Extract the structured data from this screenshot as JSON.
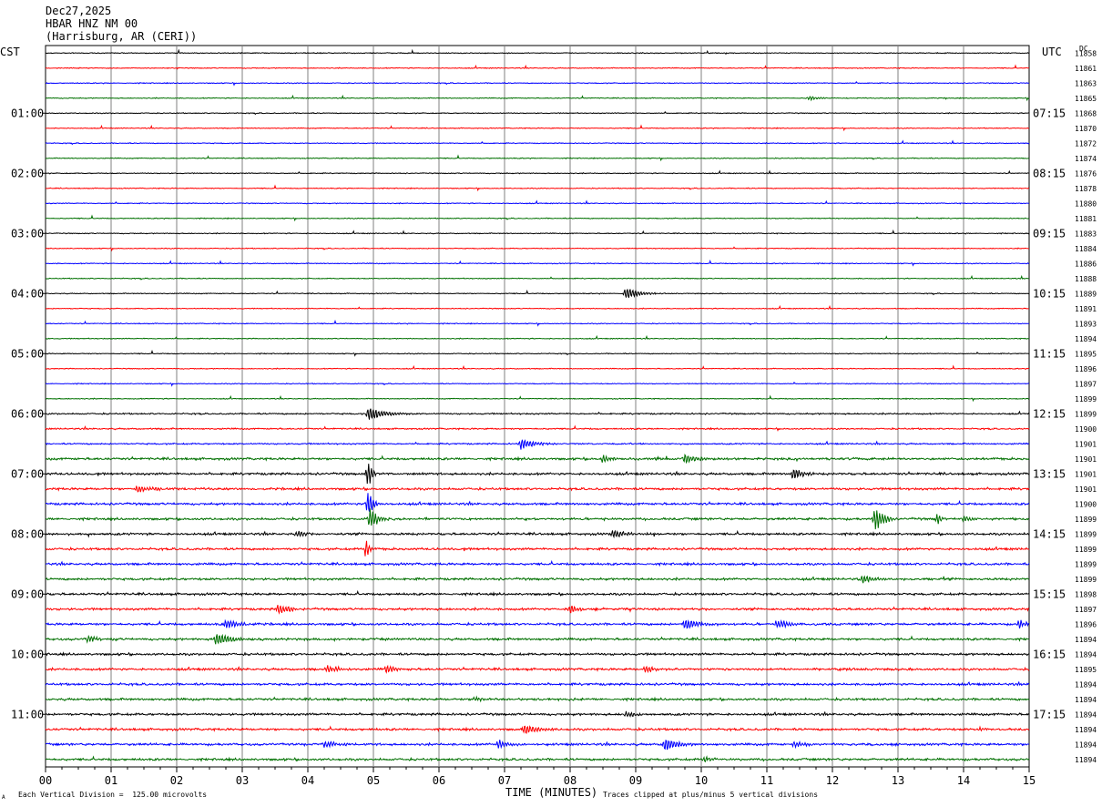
{
  "header": {
    "date": "Dec27,2025",
    "station": "HBAR HNZ NM 00",
    "location": "(Harrisburg, AR (CERI))"
  },
  "left_axis_title": "CST",
  "right_axis_title": "UTC",
  "dc_title": "DC",
  "footer": {
    "scale_note": "Each Vertical Division =  125.00 microvolts",
    "clip_note": "Traces clipped at plus/minus 5 vertical divisions",
    "corner_mark": "A"
  },
  "colors": {
    "trace_cycle": [
      "#000000",
      "#ff0000",
      "#0000ff",
      "#007000"
    ],
    "grid": "#808080"
  },
  "chart_data": {
    "type": "line",
    "title": "HBAR HNZ NM 00",
    "xlabel": "TIME (MINUTES)",
    "ylabel_left": "CST",
    "ylabel_right": "UTC",
    "xlim": [
      0,
      15
    ],
    "x_ticks": [
      "00",
      "01",
      "02",
      "03",
      "04",
      "05",
      "06",
      "07",
      "08",
      "09",
      "10",
      "11",
      "12",
      "13",
      "14",
      "15"
    ],
    "row_minutes": 15,
    "rows": 48,
    "left_time_labels": [
      {
        "row": 4,
        "label": "01:00"
      },
      {
        "row": 8,
        "label": "02:00"
      },
      {
        "row": 12,
        "label": "03:00"
      },
      {
        "row": 16,
        "label": "04:00"
      },
      {
        "row": 20,
        "label": "05:00"
      },
      {
        "row": 24,
        "label": "06:00"
      },
      {
        "row": 28,
        "label": "07:00"
      },
      {
        "row": 32,
        "label": "08:00"
      },
      {
        "row": 36,
        "label": "09:00"
      },
      {
        "row": 40,
        "label": "10:00"
      },
      {
        "row": 44,
        "label": "11:00"
      }
    ],
    "right_time_labels": [
      {
        "row": 4,
        "label": "07:15"
      },
      {
        "row": 8,
        "label": "08:15"
      },
      {
        "row": 12,
        "label": "09:15"
      },
      {
        "row": 16,
        "label": "10:15"
      },
      {
        "row": 20,
        "label": "11:15"
      },
      {
        "row": 24,
        "label": "12:15"
      },
      {
        "row": 28,
        "label": "13:15"
      },
      {
        "row": 32,
        "label": "14:15"
      },
      {
        "row": 36,
        "label": "15:15"
      },
      {
        "row": 40,
        "label": "16:15"
      },
      {
        "row": 44,
        "label": "17:15"
      }
    ],
    "dc_offsets": [
      "11858",
      "11861",
      "11863",
      "11865",
      "11868",
      "11870",
      "11872",
      "11874",
      "11876",
      "11878",
      "11880",
      "11881",
      "11883",
      "11884",
      "11886",
      "11888",
      "11889",
      "11891",
      "11893",
      "11894",
      "11895",
      "11896",
      "11897",
      "11899",
      "11899",
      "11900",
      "11901",
      "11901",
      "11901",
      "11901",
      "11900",
      "11899",
      "11899",
      "11899",
      "11899",
      "11899",
      "11898",
      "11897",
      "11896",
      "11894",
      "11894",
      "11895",
      "11894",
      "11894",
      "11894",
      "11894",
      "11894",
      "11894"
    ],
    "events": [
      {
        "row": 3,
        "minute": 11.65,
        "amp": 3,
        "dur": 0.45
      },
      {
        "row": 16,
        "minute": 8.85,
        "amp": 8,
        "dur": 0.5
      },
      {
        "row": 24,
        "minute": 4.92,
        "amp": 9,
        "dur": 0.7
      },
      {
        "row": 26,
        "minute": 7.25,
        "amp": 7,
        "dur": 0.55
      },
      {
        "row": 27,
        "minute": 8.5,
        "amp": 5,
        "dur": 0.3
      },
      {
        "row": 27,
        "minute": 9.75,
        "amp": 7,
        "dur": 0.4
      },
      {
        "row": 28,
        "minute": 4.92,
        "amp": 20,
        "dur": 0.15
      },
      {
        "row": 28,
        "minute": 11.4,
        "amp": 8,
        "dur": 0.4
      },
      {
        "row": 29,
        "minute": 1.4,
        "amp": 4,
        "dur": 0.7
      },
      {
        "row": 30,
        "minute": 4.92,
        "amp": 18,
        "dur": 0.2
      },
      {
        "row": 31,
        "minute": 4.95,
        "amp": 16,
        "dur": 0.3
      },
      {
        "row": 31,
        "minute": 12.65,
        "amp": 16,
        "dur": 0.35
      },
      {
        "row": 31,
        "minute": 13.6,
        "amp": 7,
        "dur": 0.2
      },
      {
        "row": 31,
        "minute": 14.0,
        "amp": 5,
        "dur": 0.3
      },
      {
        "row": 32,
        "minute": 3.85,
        "amp": 5,
        "dur": 0.3
      },
      {
        "row": 32,
        "minute": 8.65,
        "amp": 5,
        "dur": 0.6
      },
      {
        "row": 33,
        "minute": 4.9,
        "amp": 16,
        "dur": 0.1
      },
      {
        "row": 35,
        "minute": 12.45,
        "amp": 5,
        "dur": 0.6
      },
      {
        "row": 37,
        "minute": 3.55,
        "amp": 7,
        "dur": 0.4
      },
      {
        "row": 37,
        "minute": 8.0,
        "amp": 6,
        "dur": 0.4
      },
      {
        "row": 38,
        "minute": 2.75,
        "amp": 6,
        "dur": 0.5
      },
      {
        "row": 38,
        "minute": 9.75,
        "amp": 7,
        "dur": 0.55
      },
      {
        "row": 38,
        "minute": 11.15,
        "amp": 5,
        "dur": 0.6
      },
      {
        "row": 38,
        "minute": 14.85,
        "amp": 6,
        "dur": 0.2
      },
      {
        "row": 39,
        "minute": 0.65,
        "amp": 6,
        "dur": 0.3
      },
      {
        "row": 39,
        "minute": 2.6,
        "amp": 8,
        "dur": 0.6
      },
      {
        "row": 41,
        "minute": 4.3,
        "amp": 6,
        "dur": 0.4
      },
      {
        "row": 41,
        "minute": 5.2,
        "amp": 5,
        "dur": 0.4
      },
      {
        "row": 41,
        "minute": 9.15,
        "amp": 5,
        "dur": 0.35
      },
      {
        "row": 43,
        "minute": 6.55,
        "amp": 3,
        "dur": 0.3
      },
      {
        "row": 44,
        "minute": 8.85,
        "amp": 4,
        "dur": 0.3
      },
      {
        "row": 45,
        "minute": 7.3,
        "amp": 7,
        "dur": 0.5
      },
      {
        "row": 45,
        "minute": 14.25,
        "amp": 3,
        "dur": 0.35
      },
      {
        "row": 46,
        "minute": 4.25,
        "amp": 4,
        "dur": 0.6
      },
      {
        "row": 46,
        "minute": 6.9,
        "amp": 5,
        "dur": 0.5
      },
      {
        "row": 46,
        "minute": 9.45,
        "amp": 10,
        "dur": 0.45
      },
      {
        "row": 46,
        "minute": 11.4,
        "amp": 4,
        "dur": 0.6
      },
      {
        "row": 47,
        "minute": 10.05,
        "amp": 3,
        "dur": 0.3
      }
    ]
  }
}
